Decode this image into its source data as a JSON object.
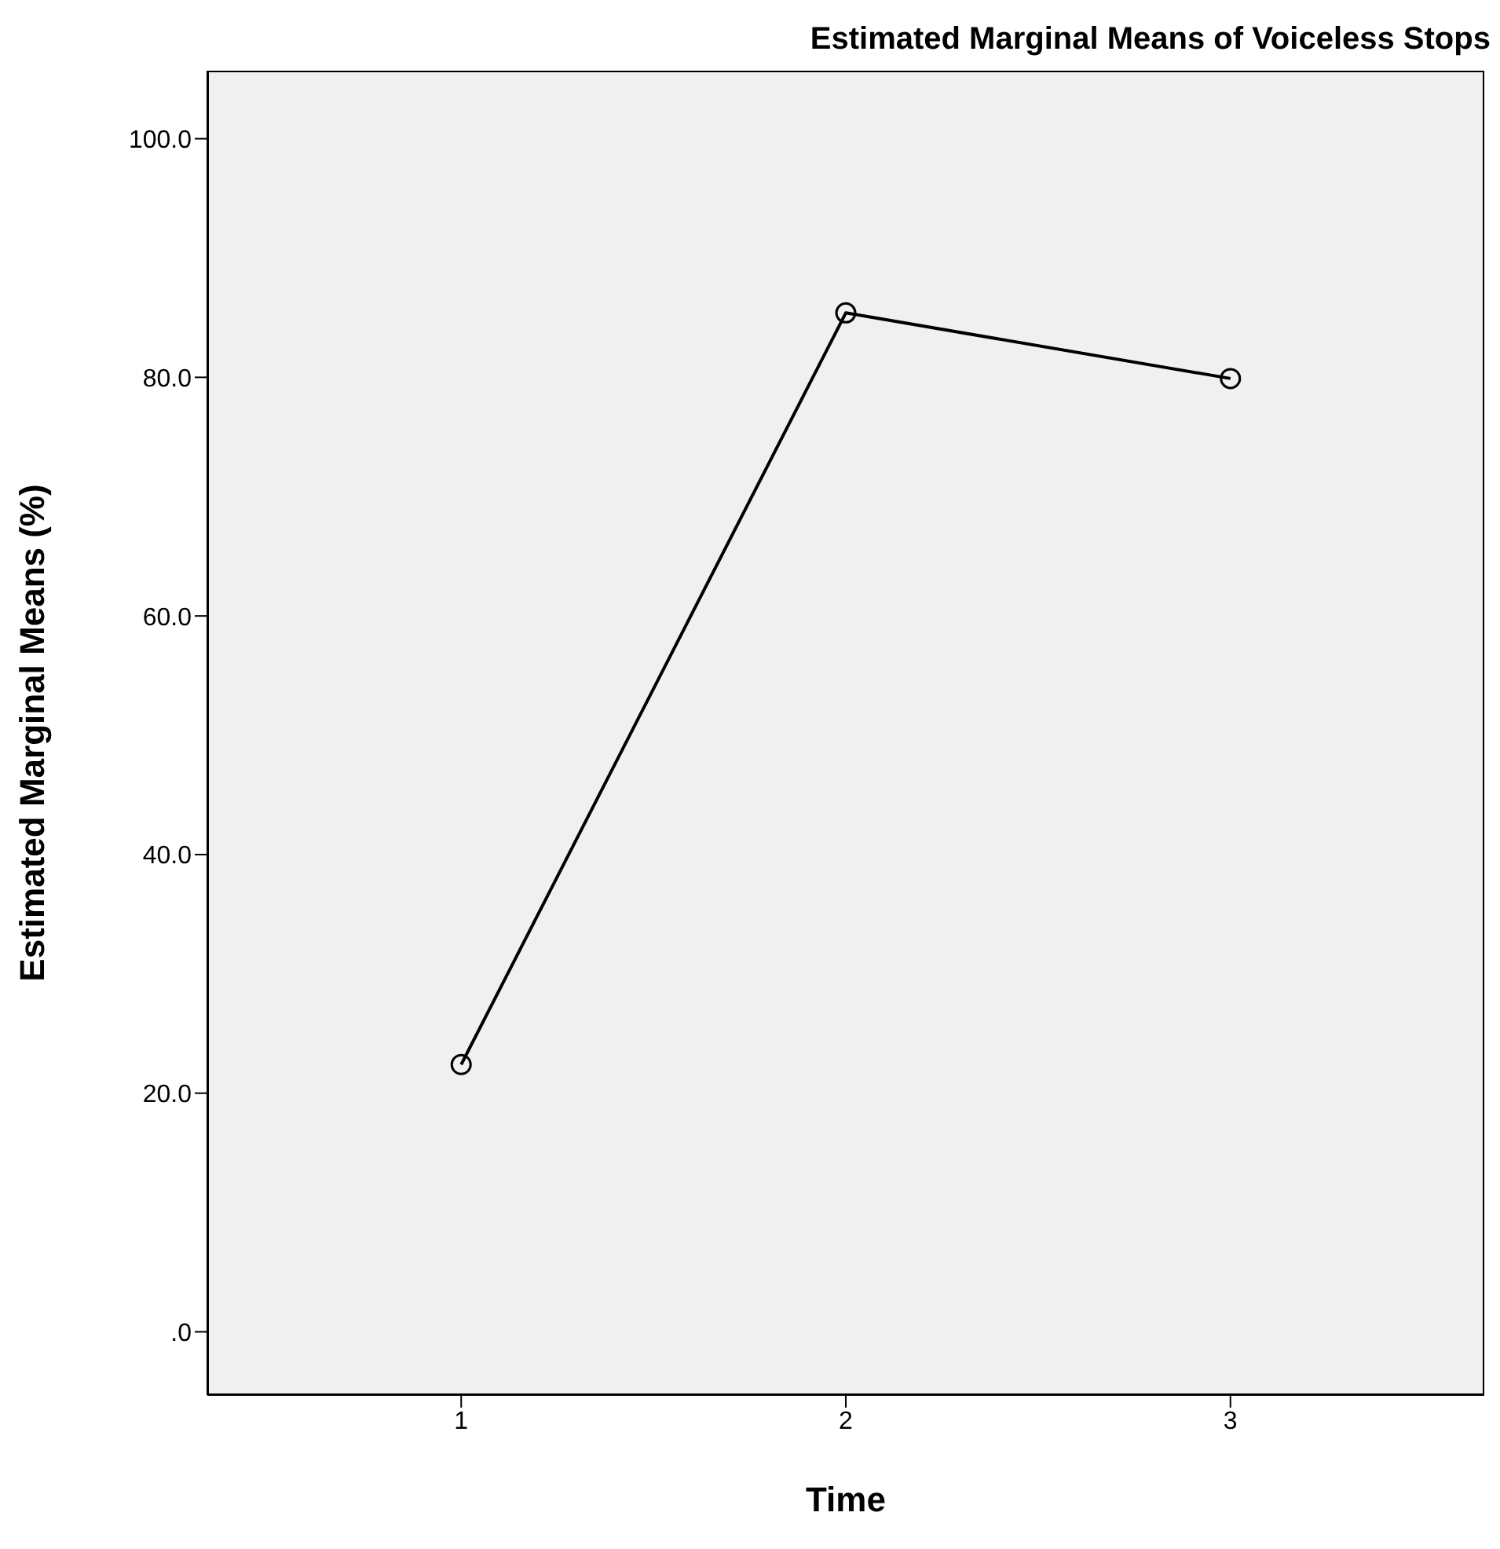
{
  "chart_data": {
    "type": "line",
    "title": "Estimated Marginal Means of Voiceless Stops",
    "xlabel": "Time",
    "ylabel": "Estimated Marginal Means (%)",
    "x": [
      1,
      2,
      3
    ],
    "series": [
      {
        "color": "#000000",
        "values": [
          22.4,
          85.4,
          79.9
        ]
      }
    ],
    "xlim": [
      0.34,
      3.66
    ],
    "xticks": [
      1,
      2,
      3
    ],
    "ylim": [
      -5.3,
      105.7
    ],
    "yticks": [
      {
        "value": 0,
        "label": ".0"
      },
      {
        "value": 20,
        "label": "20.0"
      },
      {
        "value": 40,
        "label": "40.0"
      },
      {
        "value": 60,
        "label": "60.0"
      },
      {
        "value": 80,
        "label": "80.0"
      },
      {
        "value": 100,
        "label": "100.0"
      }
    ],
    "grid": false,
    "marker": "circle",
    "line_style": "solid"
  }
}
